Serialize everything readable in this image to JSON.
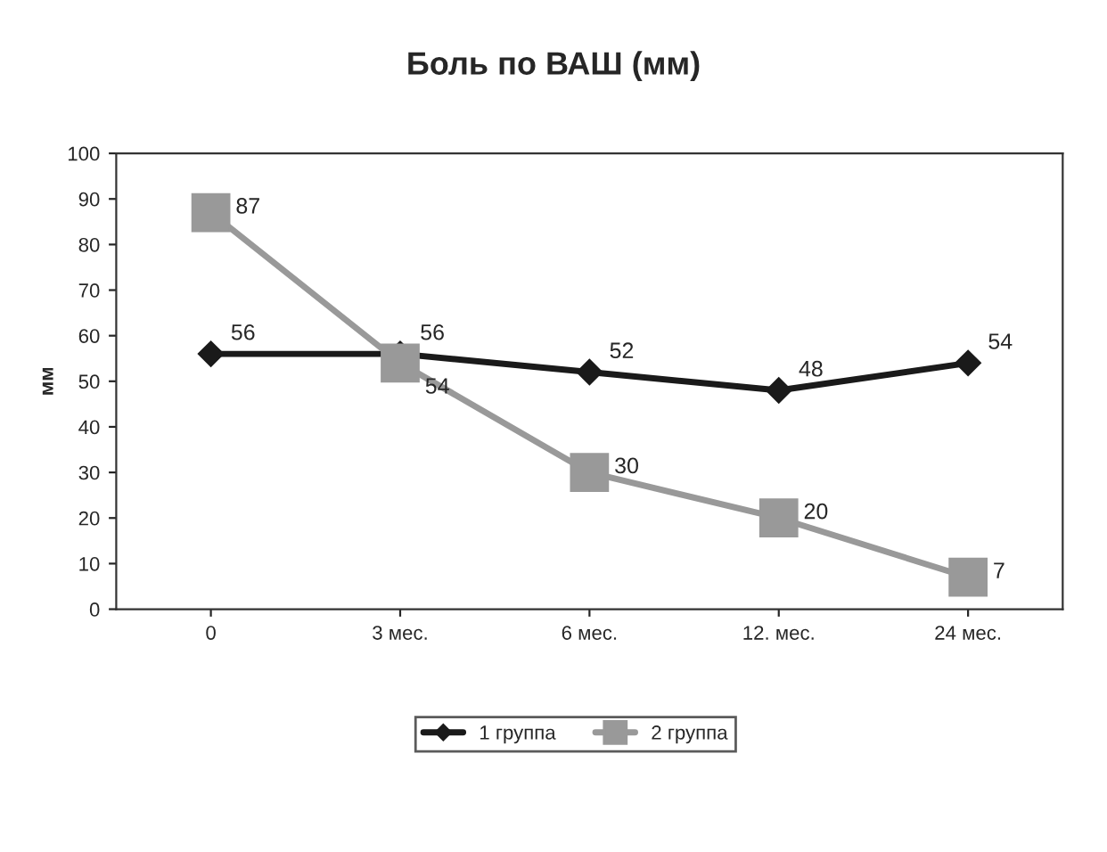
{
  "chart_data": {
    "type": "line",
    "title": "Боль по ВАШ (мм)",
    "ylabel": "мм",
    "categories": [
      "0",
      "3 мес.",
      "6 мес.",
      "12. мес.",
      "24 мес."
    ],
    "series": [
      {
        "name": "1 группа",
        "color": "#1a1a1a",
        "marker": "diamond",
        "values": [
          56,
          56,
          52,
          48,
          54
        ]
      },
      {
        "name": "2 группа",
        "color": "#999999",
        "marker": "square",
        "values": [
          87,
          54,
          30,
          20,
          7
        ]
      }
    ],
    "ylim": [
      0,
      100
    ],
    "yticks": [
      0,
      10,
      20,
      30,
      40,
      50,
      60,
      70,
      80,
      90,
      100
    ],
    "grid": false,
    "legend": "bottom",
    "data_labels": true,
    "line_style": "solid"
  }
}
